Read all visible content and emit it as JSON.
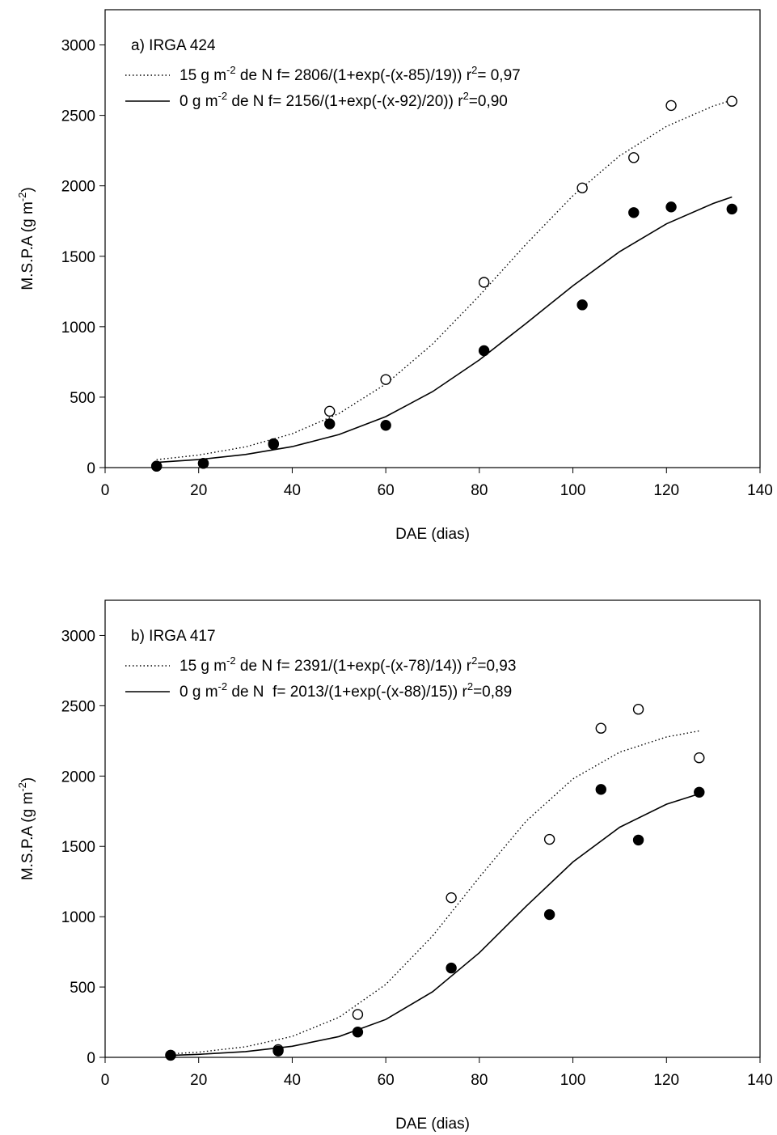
{
  "chart_data": [
    {
      "type": "scatter",
      "title": "a) IRGA 424",
      "x_label": "DAE (dias)",
      "y_label_parts": [
        "M.S.P.A (g m",
        "-2",
        ")"
      ],
      "xlim": [
        0,
        140
      ],
      "xticks": [
        0,
        20,
        40,
        60,
        80,
        100,
        120,
        140
      ],
      "ylim": [
        0,
        3250
      ],
      "yticks": [
        0,
        500,
        1000,
        1500,
        2000,
        2500,
        3000
      ],
      "series": [
        {
          "name_parts": [
            "15 g m",
            "-2",
            " de N f= 2806/(1+exp(-(x-85)/19)) r",
            "2",
            "= 0,97"
          ],
          "color": "#000000",
          "marker": "open",
          "line": "dotted",
          "x": [
            11,
            21,
            36,
            48,
            60,
            81,
            102,
            113,
            121,
            134
          ],
          "values": [
            10,
            30,
            170,
            400,
            625,
            1315,
            1985,
            2200,
            2570,
            2600
          ],
          "curve_x": [
            11,
            20,
            30,
            40,
            50,
            60,
            70,
            80,
            90,
            100,
            110,
            120,
            130,
            134
          ],
          "curve_values": [
            56,
            89,
            147,
            240,
            384,
            593,
            877,
            1220,
            1586,
            1930,
            2213,
            2422,
            2566,
            2608
          ]
        },
        {
          "name_parts": [
            "0 g m",
            "-2",
            " de N f= 2156/(1+exp(-(x-92)/20)) r",
            "2",
            "=0,90"
          ],
          "color": "#000000",
          "marker": "filled",
          "line": "solid",
          "x": [
            11,
            21,
            36,
            48,
            60,
            81,
            102,
            113,
            121,
            134
          ],
          "values": [
            10,
            30,
            165,
            310,
            300,
            830,
            1155,
            1810,
            1850,
            1835
          ],
          "curve_x": [
            11,
            20,
            30,
            40,
            50,
            60,
            70,
            80,
            90,
            100,
            110,
            120,
            130,
            134
          ],
          "curve_values": [
            37,
            57,
            93,
            149,
            235,
            362,
            539,
            764,
            1024,
            1291,
            1533,
            1730,
            1875,
            1921
          ]
        }
      ]
    },
    {
      "type": "scatter",
      "title": "b) IRGA 417",
      "x_label": "DAE (dias)",
      "y_label_parts": [
        "M.S.P.A (g m",
        "-2",
        ")"
      ],
      "xlim": [
        0,
        140
      ],
      "xticks": [
        0,
        20,
        40,
        60,
        80,
        100,
        120,
        140
      ],
      "ylim": [
        0,
        3250
      ],
      "yticks": [
        0,
        500,
        1000,
        1500,
        2000,
        2500,
        3000
      ],
      "series": [
        {
          "name_parts": [
            "15 g m",
            "-2",
            " de N f= 2391/(1+exp(-(x-78)/14)) r",
            "2",
            "=0,93"
          ],
          "color": "#000000",
          "marker": "open",
          "line": "dotted",
          "x": [
            14,
            37,
            54,
            74,
            95,
            106,
            114,
            127
          ],
          "values": [
            15,
            55,
            305,
            1135,
            1550,
            2340,
            2475,
            2130
          ],
          "curve_x": [
            14,
            20,
            30,
            40,
            50,
            60,
            70,
            80,
            90,
            100,
            110,
            120,
            127
          ],
          "curve_values": [
            25,
            37,
            75,
            149,
            285,
            518,
            863,
            1281,
            1679,
            1980,
            2170,
            2278,
            2321
          ]
        },
        {
          "name_parts": [
            "0 g m",
            "-2",
            " de N  f= 2013/(1+exp(-(x-88)/15)) r",
            "2",
            "=0,89"
          ],
          "color": "#000000",
          "marker": "filled",
          "line": "solid",
          "x": [
            14,
            37,
            54,
            74,
            95,
            106,
            114,
            127
          ],
          "values": [
            15,
            45,
            180,
            635,
            1015,
            1905,
            1545,
            1885
          ],
          "curve_x": [
            14,
            20,
            30,
            40,
            50,
            60,
            70,
            80,
            90,
            100,
            110,
            120,
            127
          ],
          "curve_values": [
            14,
            21,
            41,
            79,
            148,
            269,
            466,
            744,
            1074,
            1389,
            1636,
            1800,
            1874
          ]
        }
      ]
    }
  ]
}
